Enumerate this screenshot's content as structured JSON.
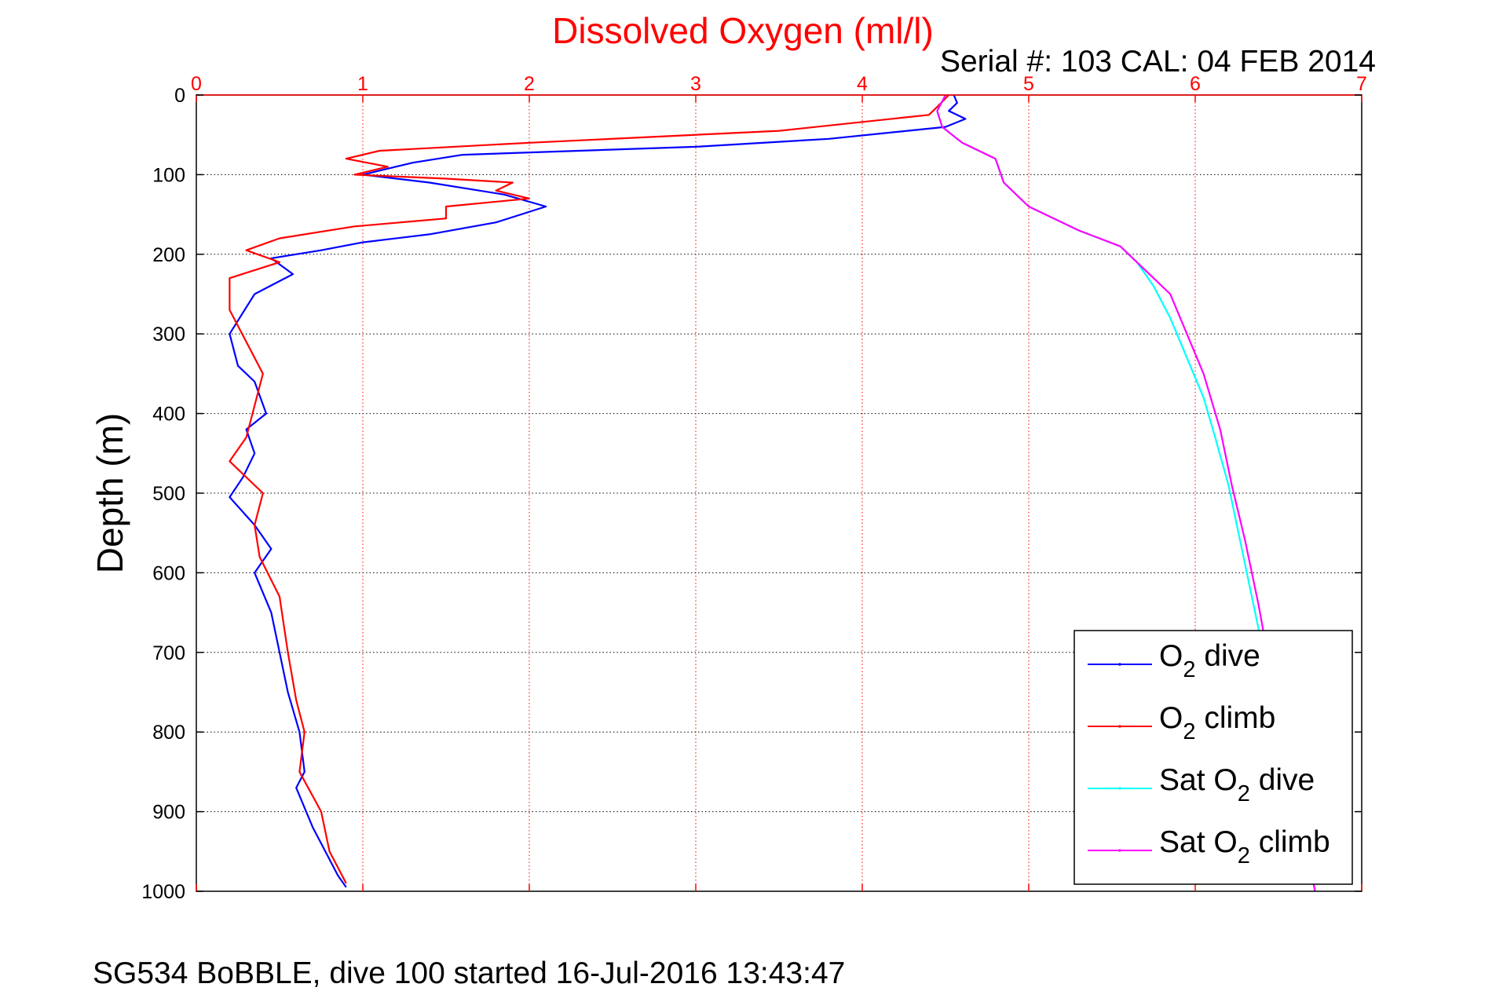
{
  "chart_data": {
    "type": "line",
    "title": "Dissolved Oxygen (ml/l)",
    "subtitle": "Serial #: 103  CAL: 04 FEB 2014",
    "xlabel": "",
    "ylabel": "Depth (m)",
    "footer": "SG534 BoBBLE, dive 100 started 16-Jul-2016 13:43:47",
    "xlim": [
      0,
      7
    ],
    "ylim": [
      0,
      1000
    ],
    "y_reversed": true,
    "x_axis_position": "top",
    "xticks": [
      "0",
      "1",
      "2",
      "3",
      "4",
      "5",
      "6",
      "7"
    ],
    "yticks": [
      "0",
      "100",
      "200",
      "300",
      "400",
      "500",
      "600",
      "700",
      "800",
      "900",
      "1000"
    ],
    "grid": true,
    "legend_position": "bottom-right",
    "colors": {
      "title": "#ff0000",
      "x_axis": "#ff0000",
      "grid_x": "#ff0000",
      "grid_y": "#000000"
    },
    "series": [
      {
        "name": "O2 dive",
        "legend_base": "O",
        "legend_sub": "2",
        "legend_suffix": " dive",
        "color": "#0000ff",
        "points": [
          [
            4.55,
            0
          ],
          [
            4.57,
            10
          ],
          [
            4.52,
            20
          ],
          [
            4.62,
            30
          ],
          [
            4.5,
            40
          ],
          [
            3.8,
            55
          ],
          [
            3.0,
            65
          ],
          [
            1.6,
            75
          ],
          [
            1.3,
            85
          ],
          [
            1.0,
            100
          ],
          [
            1.4,
            110
          ],
          [
            1.85,
            125
          ],
          [
            2.1,
            140
          ],
          [
            1.8,
            160
          ],
          [
            1.4,
            175
          ],
          [
            1.0,
            185
          ],
          [
            0.75,
            195
          ],
          [
            0.45,
            205
          ],
          [
            0.58,
            225
          ],
          [
            0.35,
            250
          ],
          [
            0.2,
            300
          ],
          [
            0.25,
            340
          ],
          [
            0.35,
            360
          ],
          [
            0.42,
            400
          ],
          [
            0.3,
            420
          ],
          [
            0.35,
            450
          ],
          [
            0.28,
            480
          ],
          [
            0.2,
            505
          ],
          [
            0.35,
            540
          ],
          [
            0.45,
            570
          ],
          [
            0.35,
            600
          ],
          [
            0.45,
            650
          ],
          [
            0.5,
            700
          ],
          [
            0.55,
            750
          ],
          [
            0.62,
            800
          ],
          [
            0.65,
            850
          ],
          [
            0.6,
            870
          ],
          [
            0.7,
            920
          ],
          [
            0.8,
            960
          ],
          [
            0.85,
            980
          ],
          [
            0.9,
            995
          ]
        ]
      },
      {
        "name": "O2 climb",
        "legend_base": "O",
        "legend_sub": "2",
        "legend_suffix": " climb",
        "color": "#ff0000",
        "points": [
          [
            4.52,
            0
          ],
          [
            4.45,
            15
          ],
          [
            4.4,
            25
          ],
          [
            3.5,
            45
          ],
          [
            2.0,
            60
          ],
          [
            1.1,
            70
          ],
          [
            0.9,
            80
          ],
          [
            1.15,
            90
          ],
          [
            0.95,
            100
          ],
          [
            1.5,
            105
          ],
          [
            1.9,
            110
          ],
          [
            1.8,
            120
          ],
          [
            2.0,
            130
          ],
          [
            1.5,
            140
          ],
          [
            1.5,
            155
          ],
          [
            0.95,
            165
          ],
          [
            0.5,
            180
          ],
          [
            0.3,
            195
          ],
          [
            0.5,
            210
          ],
          [
            0.2,
            230
          ],
          [
            0.2,
            270
          ],
          [
            0.3,
            310
          ],
          [
            0.4,
            350
          ],
          [
            0.35,
            390
          ],
          [
            0.3,
            430
          ],
          [
            0.2,
            460
          ],
          [
            0.4,
            500
          ],
          [
            0.35,
            540
          ],
          [
            0.38,
            580
          ],
          [
            0.5,
            630
          ],
          [
            0.55,
            700
          ],
          [
            0.6,
            760
          ],
          [
            0.65,
            800
          ],
          [
            0.62,
            850
          ],
          [
            0.75,
            900
          ],
          [
            0.8,
            950
          ],
          [
            0.9,
            990
          ]
        ]
      },
      {
        "name": "Sat O2 dive",
        "legend_base": "Sat O",
        "legend_sub": "2",
        "legend_suffix": " dive",
        "color": "#00ffff",
        "points": [
          [
            4.5,
            0
          ],
          [
            4.45,
            20
          ],
          [
            4.48,
            40
          ],
          [
            4.6,
            60
          ],
          [
            4.8,
            80
          ],
          [
            4.85,
            110
          ],
          [
            5.0,
            140
          ],
          [
            5.3,
            170
          ],
          [
            5.55,
            190
          ],
          [
            5.65,
            210
          ],
          [
            5.75,
            240
          ],
          [
            5.85,
            280
          ],
          [
            5.95,
            330
          ],
          [
            6.05,
            380
          ],
          [
            6.12,
            430
          ],
          [
            6.2,
            490
          ],
          [
            6.27,
            560
          ],
          [
            6.35,
            640
          ],
          [
            6.43,
            720
          ],
          [
            6.52,
            800
          ],
          [
            6.62,
            900
          ],
          [
            6.72,
            1000
          ]
        ]
      },
      {
        "name": "Sat O2 climb",
        "legend_base": "Sat O",
        "legend_sub": "2",
        "legend_suffix": " climb",
        "color": "#ff00ff",
        "points": [
          [
            4.5,
            0
          ],
          [
            4.45,
            20
          ],
          [
            4.48,
            40
          ],
          [
            4.6,
            60
          ],
          [
            4.8,
            80
          ],
          [
            4.85,
            110
          ],
          [
            5.0,
            140
          ],
          [
            5.3,
            170
          ],
          [
            5.55,
            190
          ],
          [
            5.7,
            220
          ],
          [
            5.85,
            250
          ],
          [
            5.95,
            300
          ],
          [
            6.05,
            350
          ],
          [
            6.15,
            420
          ],
          [
            6.22,
            490
          ],
          [
            6.3,
            560
          ],
          [
            6.38,
            640
          ],
          [
            6.45,
            720
          ],
          [
            6.55,
            800
          ],
          [
            6.63,
            900
          ],
          [
            6.72,
            1000
          ]
        ]
      }
    ]
  }
}
